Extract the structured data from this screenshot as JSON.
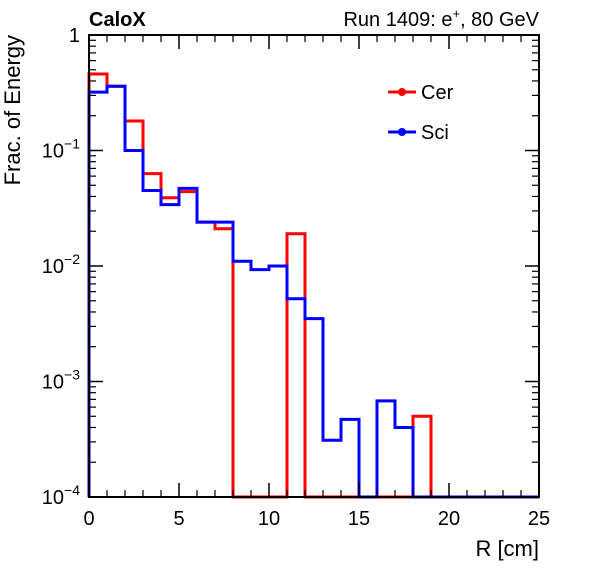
{
  "header": {
    "experiment": "CaloX",
    "run_prefix": "Run 1409: e",
    "run_sup": "+",
    "run_suffix": ", 80 GeV"
  },
  "chart_data": {
    "type": "line",
    "style": "step-histogram",
    "xlabel": "R [cm]",
    "ylabel": "Frac. of Energy",
    "xlim": [
      0,
      25
    ],
    "ylim": [
      0.0001,
      1
    ],
    "yscale": "log",
    "grid": false,
    "legend_position": "top-right",
    "x_ticks": [
      0,
      5,
      10,
      15,
      20,
      25
    ],
    "x_tick_labels": [
      "0",
      "5",
      "10",
      "15",
      "20",
      "25"
    ],
    "y_ticks": [
      {
        "value": 1,
        "base": "1",
        "exp": ""
      },
      {
        "value": 0.1,
        "base": "10",
        "exp": "−1"
      },
      {
        "value": 0.01,
        "base": "10",
        "exp": "−2"
      },
      {
        "value": 0.001,
        "base": "10",
        "exp": "−3"
      },
      {
        "value": 0.0001,
        "base": "10",
        "exp": "−4"
      }
    ],
    "bin_edges": [
      0,
      1,
      2,
      3,
      4,
      5,
      6,
      7,
      8,
      9,
      10,
      11,
      12,
      13,
      14,
      15,
      16,
      17,
      18,
      19,
      20,
      21,
      22,
      23,
      24,
      25
    ],
    "series": [
      {
        "name": "Cer",
        "color": "#ff0000",
        "values": [
          0.46,
          0.36,
          0.18,
          0.063,
          0.039,
          0.044,
          0.024,
          0.021,
          0,
          0,
          0,
          0.019,
          0,
          0,
          0,
          0,
          0,
          0,
          0.0005,
          0,
          0,
          0,
          0,
          0,
          0
        ]
      },
      {
        "name": "Sci",
        "color": "#0000ff",
        "values": [
          0.32,
          0.36,
          0.1,
          0.045,
          0.034,
          0.047,
          0.024,
          0.024,
          0.011,
          0.0093,
          0.01,
          0.0052,
          0.0035,
          0.00031,
          0.00047,
          0,
          0.00068,
          0.0004,
          0,
          0,
          0,
          0,
          0,
          0,
          0
        ]
      }
    ]
  }
}
